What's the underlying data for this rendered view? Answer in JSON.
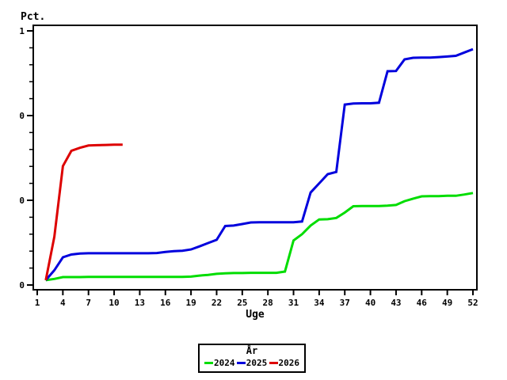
{
  "page": {
    "background": "#ffffff"
  },
  "chart_data": {
    "type": "line",
    "title": "",
    "ylabel": "Pct.",
    "xlabel": "Uge",
    "xlim": [
      1,
      52
    ],
    "ylim": [
      0,
      1
    ],
    "grid": false,
    "x_ticks": [
      1,
      4,
      7,
      10,
      13,
      16,
      19,
      22,
      25,
      28,
      31,
      34,
      37,
      40,
      43,
      46,
      49,
      52
    ],
    "y_ticks": [
      {
        "value": 1.0,
        "label": "1"
      },
      {
        "value": 0.6667,
        "label": "0"
      },
      {
        "value": 0.3333,
        "label": "0"
      },
      {
        "value": 0.0,
        "label": "0"
      }
    ],
    "y_minor_subdivisions": 5,
    "legend": {
      "title": "År",
      "position": "bottom-center",
      "entries": [
        {
          "label": "2024",
          "color": "#00dd00"
        },
        {
          "label": "2025",
          "color": "#0000dd"
        },
        {
          "label": "2026",
          "color": "#dd0000"
        }
      ]
    },
    "series": [
      {
        "name": "2024",
        "color": "#00dd00",
        "points": [
          [
            2,
            0.019
          ],
          [
            3,
            0.024
          ],
          [
            4,
            0.031
          ],
          [
            5,
            0.031
          ],
          [
            6,
            0.031
          ],
          [
            7,
            0.032
          ],
          [
            8,
            0.032
          ],
          [
            9,
            0.032
          ],
          [
            10,
            0.032
          ],
          [
            11,
            0.032
          ],
          [
            12,
            0.032
          ],
          [
            13,
            0.032
          ],
          [
            14,
            0.032
          ],
          [
            15,
            0.032
          ],
          [
            16,
            0.032
          ],
          [
            17,
            0.032
          ],
          [
            18,
            0.032
          ],
          [
            19,
            0.033
          ],
          [
            20,
            0.037
          ],
          [
            21,
            0.04
          ],
          [
            22,
            0.044
          ],
          [
            23,
            0.046
          ],
          [
            24,
            0.047
          ],
          [
            25,
            0.047
          ],
          [
            26,
            0.048
          ],
          [
            27,
            0.048
          ],
          [
            28,
            0.048
          ],
          [
            29,
            0.048
          ],
          [
            30,
            0.053
          ],
          [
            31,
            0.175
          ],
          [
            32,
            0.2
          ],
          [
            33,
            0.234
          ],
          [
            34,
            0.258
          ],
          [
            35,
            0.259
          ],
          [
            36,
            0.264
          ],
          [
            37,
            0.285
          ],
          [
            38,
            0.31
          ],
          [
            39,
            0.311
          ],
          [
            40,
            0.311
          ],
          [
            41,
            0.311
          ],
          [
            42,
            0.312
          ],
          [
            43,
            0.315
          ],
          [
            44,
            0.33
          ],
          [
            45,
            0.34
          ],
          [
            46,
            0.349
          ],
          [
            47,
            0.35
          ],
          [
            48,
            0.35
          ],
          [
            49,
            0.351
          ],
          [
            50,
            0.351
          ],
          [
            51,
            0.356
          ],
          [
            52,
            0.362
          ]
        ]
      },
      {
        "name": "2025",
        "color": "#0000dd",
        "points": [
          [
            2,
            0.019
          ],
          [
            3,
            0.058
          ],
          [
            4,
            0.109
          ],
          [
            5,
            0.12
          ],
          [
            6,
            0.124
          ],
          [
            7,
            0.125
          ],
          [
            8,
            0.125
          ],
          [
            9,
            0.125
          ],
          [
            10,
            0.125
          ],
          [
            11,
            0.125
          ],
          [
            12,
            0.125
          ],
          [
            13,
            0.125
          ],
          [
            14,
            0.125
          ],
          [
            15,
            0.126
          ],
          [
            16,
            0.13
          ],
          [
            17,
            0.133
          ],
          [
            18,
            0.135
          ],
          [
            19,
            0.14
          ],
          [
            20,
            0.152
          ],
          [
            21,
            0.165
          ],
          [
            22,
            0.178
          ],
          [
            23,
            0.232
          ],
          [
            24,
            0.234
          ],
          [
            25,
            0.24
          ],
          [
            26,
            0.246
          ],
          [
            27,
            0.247
          ],
          [
            28,
            0.247
          ],
          [
            29,
            0.247
          ],
          [
            30,
            0.247
          ],
          [
            31,
            0.247
          ],
          [
            32,
            0.25
          ],
          [
            33,
            0.364
          ],
          [
            34,
            0.4
          ],
          [
            35,
            0.436
          ],
          [
            36,
            0.445
          ],
          [
            37,
            0.71
          ],
          [
            38,
            0.714
          ],
          [
            39,
            0.715
          ],
          [
            40,
            0.715
          ],
          [
            41,
            0.717
          ],
          [
            42,
            0.841
          ],
          [
            43,
            0.842
          ],
          [
            44,
            0.888
          ],
          [
            45,
            0.894
          ],
          [
            46,
            0.895
          ],
          [
            47,
            0.895
          ],
          [
            48,
            0.897
          ],
          [
            49,
            0.899
          ],
          [
            50,
            0.902
          ],
          [
            51,
            0.915
          ],
          [
            52,
            0.928
          ]
        ]
      },
      {
        "name": "2026",
        "color": "#dd0000",
        "points": [
          [
            2,
            0.019
          ],
          [
            3,
            0.19
          ],
          [
            4,
            0.468
          ],
          [
            5,
            0.528
          ],
          [
            6,
            0.54
          ],
          [
            7,
            0.549
          ],
          [
            8,
            0.55
          ],
          [
            9,
            0.551
          ],
          [
            10,
            0.552
          ],
          [
            11,
            0.552
          ]
        ]
      }
    ]
  }
}
